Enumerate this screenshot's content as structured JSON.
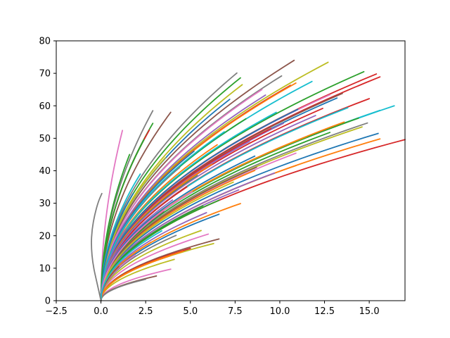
{
  "chart_data": {
    "type": "line",
    "title": "",
    "xlabel": "",
    "ylabel": "",
    "xlim": [
      -2.5,
      17.0
    ],
    "ylim": [
      0,
      80
    ],
    "xticks": [
      -2.5,
      0.0,
      2.5,
      5.0,
      7.5,
      10.0,
      12.5,
      15.0
    ],
    "xtick_labels": [
      "−2.5",
      "0.0",
      "2.5",
      "5.0",
      "7.5",
      "10.0",
      "12.5",
      "15.0"
    ],
    "yticks": [
      0,
      10,
      20,
      30,
      40,
      50,
      60,
      70,
      80
    ],
    "ytick_labels": [
      "0",
      "10",
      "20",
      "30",
      "40",
      "50",
      "60",
      "70",
      "80"
    ],
    "grid": false,
    "legend": "none",
    "palette": [
      "#1f77b4",
      "#ff7f0e",
      "#2ca02c",
      "#d62728",
      "#9467bd",
      "#8c564b",
      "#e377c2",
      "#7f7f7f",
      "#bcbd22",
      "#17becf"
    ],
    "curve_shape": "y = end_y * (x / end_x)^0.5, starting at the origin",
    "series": [
      {
        "color": "#d62728",
        "end": [
          17.0,
          49.6
        ]
      },
      {
        "color": "#1f77b4",
        "end": [
          15.5,
          51.5
        ]
      },
      {
        "color": "#ff7f0e",
        "end": [
          15.6,
          49.8
        ]
      },
      {
        "color": "#17becf",
        "end": [
          16.4,
          60.0
        ]
      },
      {
        "color": "#17becf",
        "end": [
          15.6,
          58.6
        ]
      },
      {
        "color": "#d62728",
        "end": [
          15.4,
          69.8
        ]
      },
      {
        "color": "#d62728",
        "end": [
          15.6,
          68.9
        ]
      },
      {
        "color": "#2ca02c",
        "end": [
          14.7,
          70.5
        ]
      },
      {
        "color": "#bcbd22",
        "end": [
          12.7,
          73.4
        ]
      },
      {
        "color": "#8c564b",
        "end": [
          10.8,
          74.0
        ]
      },
      {
        "color": "#7f7f7f",
        "end": [
          10.1,
          69.2
        ]
      },
      {
        "color": "#d62728",
        "end": [
          15.0,
          62.2
        ]
      },
      {
        "color": "#7f7f7f",
        "end": [
          14.9,
          54.7
        ]
      },
      {
        "color": "#bcbd22",
        "end": [
          14.6,
          53.5
        ]
      },
      {
        "color": "#2ca02c",
        "end": [
          14.4,
          56.2
        ]
      },
      {
        "color": "#17becf",
        "end": [
          13.8,
          59.4
        ]
      },
      {
        "color": "#1f77b4",
        "end": [
          13.2,
          62.4
        ]
      },
      {
        "color": "#8c564b",
        "end": [
          13.5,
          63.8
        ]
      },
      {
        "color": "#e377c2",
        "end": [
          12.8,
          63.4
        ]
      },
      {
        "color": "#d62728",
        "end": [
          12.4,
          59.2
        ]
      },
      {
        "color": "#2ca02c",
        "end": [
          12.8,
          51.8
        ]
      },
      {
        "color": "#17becf",
        "end": [
          11.8,
          67.5
        ]
      },
      {
        "color": "#d62728",
        "end": [
          10.6,
          66.3
        ]
      },
      {
        "color": "#ff7f0e",
        "end": [
          10.9,
          67.0
        ]
      },
      {
        "color": "#1f77b4",
        "end": [
          11.0,
          58.9
        ]
      },
      {
        "color": "#9467bd",
        "end": [
          10.2,
          54.6
        ]
      },
      {
        "color": "#e377c2",
        "end": [
          10.9,
          45.4
        ]
      },
      {
        "color": "#ff7f0e",
        "end": [
          10.9,
          41.6
        ]
      },
      {
        "color": "#9467bd",
        "end": [
          9.7,
          39.3
        ]
      },
      {
        "color": "#ff7f0e",
        "end": [
          8.6,
          40.1
        ]
      },
      {
        "color": "#8c564b",
        "end": [
          8.7,
          41.1
        ]
      },
      {
        "color": "#9467bd",
        "end": [
          9.2,
          63.3
        ]
      },
      {
        "color": "#e377c2",
        "end": [
          9.0,
          65.0
        ]
      },
      {
        "color": "#bcbd22",
        "end": [
          7.9,
          66.5
        ]
      },
      {
        "color": "#7f7f7f",
        "end": [
          7.6,
          70.1
        ]
      },
      {
        "color": "#2ca02c",
        "end": [
          7.8,
          68.6
        ]
      },
      {
        "color": "#9467bd",
        "end": [
          7.7,
          34.1
        ]
      },
      {
        "color": "#ff7f0e",
        "end": [
          7.8,
          29.9
        ]
      },
      {
        "color": "#2ca02c",
        "end": [
          6.6,
          30.9
        ]
      },
      {
        "color": "#1f77b4",
        "end": [
          6.6,
          26.6
        ]
      },
      {
        "color": "#8c564b",
        "end": [
          6.6,
          19.0
        ]
      },
      {
        "color": "#bcbd22",
        "end": [
          6.3,
          17.6
        ]
      },
      {
        "color": "#e377c2",
        "end": [
          6.0,
          20.5
        ]
      },
      {
        "color": "#bcbd22",
        "end": [
          5.6,
          21.6
        ]
      },
      {
        "color": "#d62728",
        "end": [
          5.0,
          16.1
        ]
      },
      {
        "color": "#9467bd",
        "end": [
          5.9,
          27.1
        ]
      },
      {
        "color": "#2ca02c",
        "end": [
          5.7,
          29.2
        ]
      },
      {
        "color": "#7f7f7f",
        "end": [
          4.2,
          20.1
        ]
      },
      {
        "color": "#ff7f0e",
        "end": [
          4.6,
          15.2
        ]
      },
      {
        "color": "#bcbd22",
        "end": [
          4.1,
          12.7
        ]
      },
      {
        "color": "#e377c2",
        "end": [
          3.9,
          9.7
        ]
      },
      {
        "color": "#8c564b",
        "end": [
          3.1,
          7.6
        ]
      },
      {
        "color": "#7f7f7f",
        "end": [
          2.5,
          6.6
        ]
      },
      {
        "color": "#ff7f0e",
        "end": [
          3.8,
          13.7
        ]
      },
      {
        "color": "#8c564b",
        "end": [
          3.9,
          58.0
        ]
      },
      {
        "color": "#7f7f7f",
        "end": [
          2.9,
          58.5
        ]
      },
      {
        "color": "#2ca02c",
        "end": [
          2.9,
          54.6
        ]
      },
      {
        "color": "#d62728",
        "end": [
          2.7,
          52.5
        ]
      },
      {
        "color": "#2ca02c",
        "end": [
          2.4,
          49.5
        ]
      },
      {
        "color": "#e377c2",
        "end": [
          1.2,
          52.4
        ]
      },
      {
        "color": "#1f77b4",
        "end": [
          5.2,
          46.0
        ]
      },
      {
        "color": "#ff7f0e",
        "end": [
          6.5,
          48.0
        ]
      },
      {
        "color": "#2ca02c",
        "end": [
          8.1,
          56.0
        ]
      },
      {
        "color": "#d62728",
        "end": [
          9.5,
          53.0
        ]
      },
      {
        "color": "#9467bd",
        "end": [
          8.3,
          49.0
        ]
      },
      {
        "color": "#bcbd22",
        "end": [
          11.5,
          50.5
        ]
      },
      {
        "color": "#17becf",
        "end": [
          9.8,
          58.0
        ]
      },
      {
        "color": "#1f77b4",
        "end": [
          7.2,
          62.0
        ]
      },
      {
        "color": "#ff7f0e",
        "end": [
          6.2,
          42.0
        ]
      },
      {
        "color": "#2ca02c",
        "end": [
          5.4,
          38.5
        ]
      },
      {
        "color": "#d62728",
        "end": [
          4.8,
          35.0
        ]
      },
      {
        "color": "#9467bd",
        "end": [
          4.0,
          31.0
        ]
      },
      {
        "color": "#8c564b",
        "end": [
          3.5,
          27.5
        ]
      },
      {
        "color": "#e377c2",
        "end": [
          3.2,
          24.0
        ]
      },
      {
        "color": "#7f7f7f",
        "end": [
          4.4,
          41.0
        ]
      },
      {
        "color": "#bcbd22",
        "end": [
          3.6,
          44.0
        ]
      },
      {
        "color": "#17becf",
        "end": [
          2.2,
          39.0
        ]
      },
      {
        "color": "#1f77b4",
        "end": [
          1.8,
          33.0
        ]
      },
      {
        "color": "#2ca02c",
        "end": [
          1.6,
          45.0
        ]
      },
      {
        "color": "#d62728",
        "end": [
          2.0,
          28.0
        ]
      },
      {
        "color": "#9467bd",
        "end": [
          1.4,
          22.0
        ]
      },
      {
        "color": "#ff7f0e",
        "end": [
          2.8,
          18.0
        ]
      },
      {
        "color": "#e377c2",
        "end": [
          1.9,
          14.0
        ]
      },
      {
        "color": "#8c564b",
        "end": [
          1.0,
          10.5
        ]
      },
      {
        "color": "#17becf",
        "end": [
          6.9,
          52.0
        ]
      },
      {
        "color": "#9467bd",
        "end": [
          12.0,
          57.0
        ]
      },
      {
        "color": "#ff7f0e",
        "end": [
          13.6,
          55.0
        ]
      },
      {
        "color": "#1f77b4",
        "end": [
          8.6,
          44.5
        ]
      },
      {
        "color": "#bcbd22",
        "end": [
          7.4,
          36.5
        ]
      },
      {
        "color": "#e377c2",
        "end": [
          5.1,
          33.5
        ]
      },
      {
        "color": "#17becf",
        "end": [
          3.4,
          21.5
        ]
      }
    ],
    "special_series": [
      {
        "color": "#7f7f7f",
        "points": [
          [
            0.0,
            0.0
          ],
          [
            -0.2,
            5.0
          ],
          [
            -0.45,
            11.0
          ],
          [
            -0.55,
            17.0
          ],
          [
            -0.5,
            22.0
          ],
          [
            -0.35,
            26.5
          ],
          [
            -0.15,
            30.5
          ],
          [
            0.05,
            33.0
          ]
        ]
      }
    ]
  }
}
